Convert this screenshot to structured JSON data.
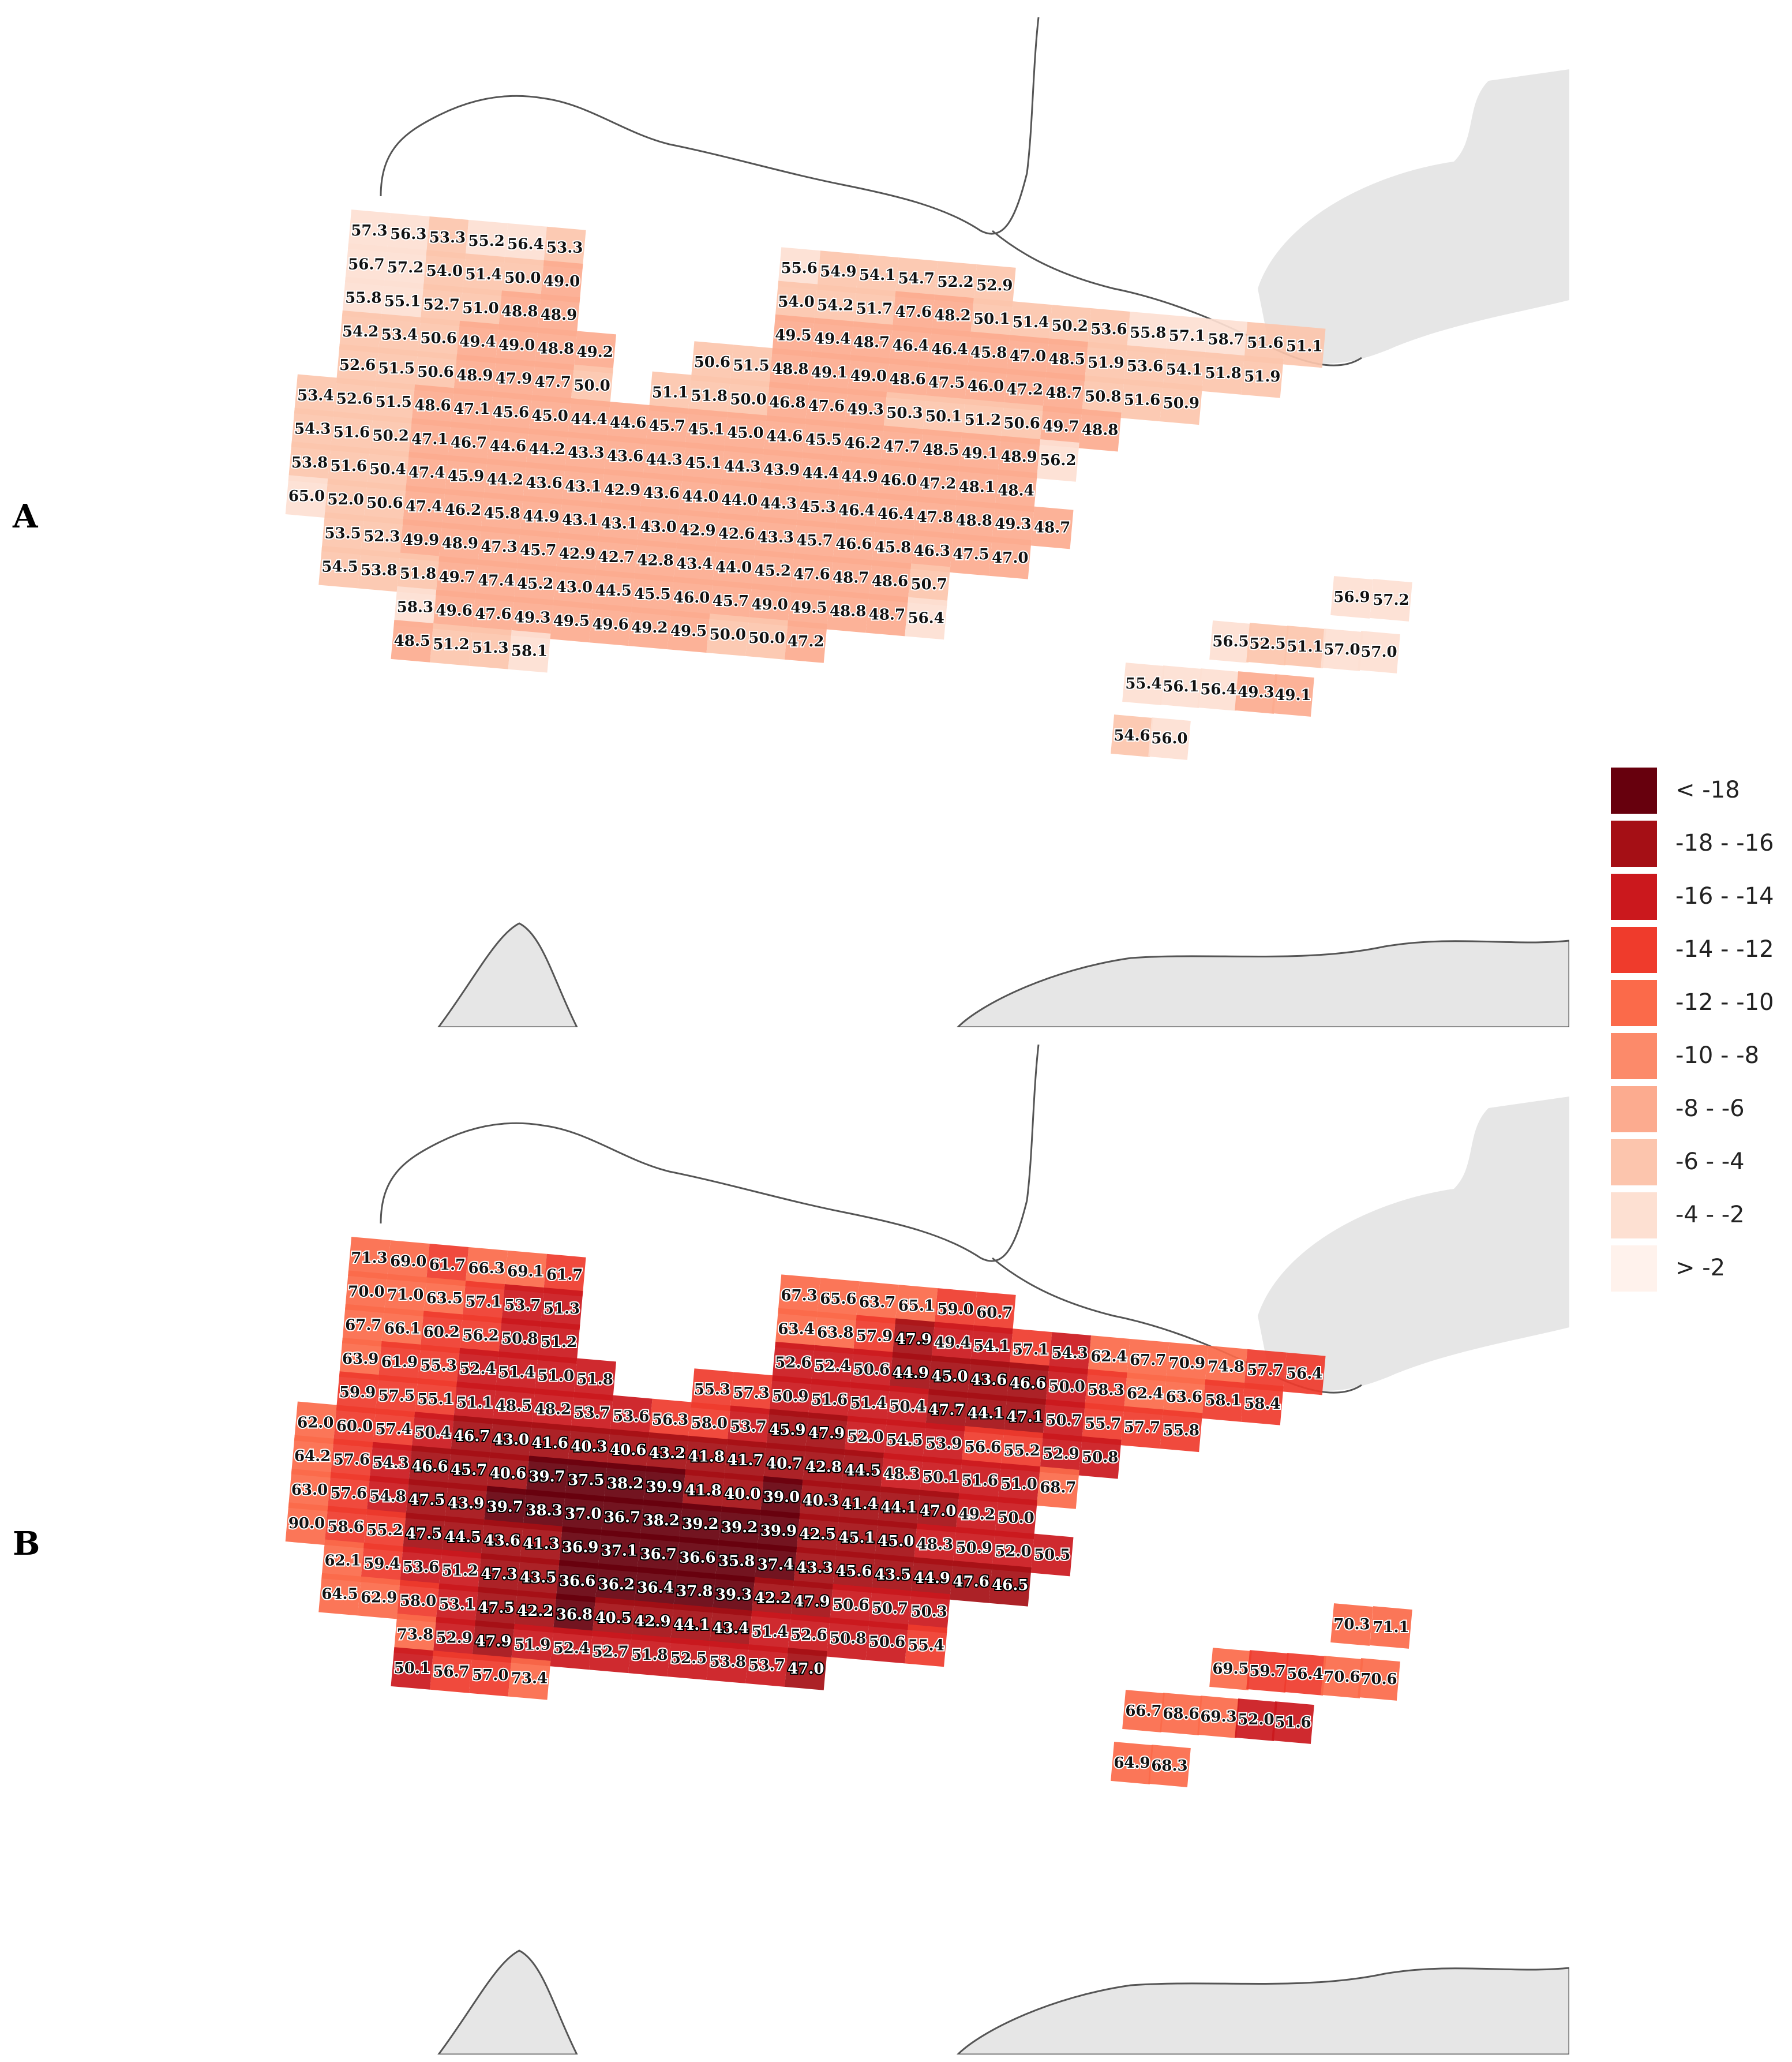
{
  "panels": [
    {
      "letter": "A",
      "rows": [
        [
          "57.3",
          "56.3",
          "53.3",
          "55.2",
          "56.4",
          "53.3",
          null,
          null,
          null,
          null,
          null,
          "55.6",
          "54.9",
          "54.1",
          "54.7",
          "52.2",
          "52.9",
          null,
          null,
          null,
          null,
          null,
          null,
          null,
          null,
          null,
          null
        ],
        [
          "56.7",
          "57.2",
          "54.0",
          "51.4",
          "50.0",
          "49.0",
          null,
          null,
          null,
          null,
          null,
          "54.0",
          "54.2",
          "51.7",
          "47.6",
          "48.2",
          "50.1",
          "51.4",
          "50.2",
          "53.6",
          "55.8",
          "57.1",
          "58.7",
          "51.6",
          "51.1",
          null,
          null
        ],
        [
          "55.8",
          "55.1",
          "52.7",
          "51.0",
          "48.8",
          "48.9",
          null,
          null,
          null,
          null,
          null,
          "49.5",
          "49.4",
          "48.7",
          "46.4",
          "46.4",
          "45.8",
          "47.0",
          "48.5",
          "51.9",
          "53.6",
          "54.1",
          "51.8",
          "51.9",
          null,
          null,
          null
        ],
        [
          "54.2",
          "53.4",
          "50.6",
          "49.4",
          "49.0",
          "48.8",
          "49.2",
          null,
          null,
          "50.6",
          "51.5",
          "48.8",
          "49.1",
          "49.0",
          "48.6",
          "47.5",
          "46.0",
          "47.2",
          "48.7",
          "50.8",
          "51.6",
          "50.9",
          null,
          null,
          null,
          null,
          null
        ],
        [
          "52.6",
          "51.5",
          "50.6",
          "48.9",
          "47.9",
          "47.7",
          "50.0",
          null,
          "51.1",
          "51.8",
          "50.0",
          "46.8",
          "47.6",
          "49.3",
          "50.3",
          "50.1",
          "51.2",
          "50.6",
          "49.7",
          "48.8",
          null,
          null,
          null,
          null,
          null,
          null,
          null
        ],
        [
          "53.4",
          "52.6",
          "51.5",
          "48.6",
          "47.1",
          "45.6",
          "45.0",
          "44.4",
          "44.6",
          "45.7",
          "45.1",
          "45.0",
          "44.6",
          "45.5",
          "46.2",
          "47.7",
          "48.5",
          "49.1",
          "48.9",
          "56.2",
          null,
          null,
          null,
          null,
          null,
          null,
          null
        ],
        [
          "54.3",
          "51.6",
          "50.2",
          "47.1",
          "46.7",
          "44.6",
          "44.2",
          "43.3",
          "43.6",
          "44.3",
          "45.1",
          "44.3",
          "43.9",
          "44.4",
          "44.9",
          "46.0",
          "47.2",
          "48.1",
          "48.4",
          null,
          null,
          null,
          null,
          null,
          null,
          null,
          null
        ],
        [
          "53.8",
          "51.6",
          "50.4",
          "47.4",
          "45.9",
          "44.2",
          "43.6",
          "43.1",
          "42.9",
          "43.6",
          "44.0",
          "44.0",
          "44.3",
          "45.3",
          "46.4",
          "46.4",
          "47.8",
          "48.8",
          "49.3",
          "48.7",
          null,
          null,
          null,
          null,
          null,
          null,
          null
        ],
        [
          "65.0",
          "52.0",
          "50.6",
          "47.4",
          "46.2",
          "45.8",
          "44.9",
          "43.1",
          "43.1",
          "43.0",
          "42.9",
          "42.6",
          "43.3",
          "45.7",
          "46.6",
          "45.8",
          "46.3",
          "47.5",
          "47.0",
          null,
          null,
          null,
          null,
          null,
          null,
          null,
          null
        ],
        [
          "53.5",
          "52.3",
          "49.9",
          "48.9",
          "47.3",
          "45.7",
          "42.9",
          "42.7",
          "42.8",
          "43.4",
          "44.0",
          "45.2",
          "47.6",
          "48.7",
          "48.6",
          "50.7",
          null,
          null,
          null,
          null,
          null,
          null,
          null,
          null,
          null,
          null,
          null
        ],
        [
          "54.5",
          "53.8",
          "51.8",
          "49.7",
          "47.4",
          "45.2",
          "43.0",
          "44.5",
          "45.5",
          "46.0",
          "45.7",
          "49.0",
          "49.5",
          "48.8",
          "48.7",
          "56.4",
          null,
          null,
          null,
          null,
          null,
          null,
          null,
          null,
          null,
          null,
          null
        ],
        [
          "58.3",
          "49.6",
          "47.6",
          "49.3",
          "49.5",
          "49.6",
          "49.2",
          "49.5",
          "50.0",
          "50.0",
          "47.2",
          null,
          null,
          null,
          null,
          null,
          null,
          null,
          null,
          null,
          null,
          null,
          null,
          null,
          null,
          null,
          null
        ],
        [
          "48.5",
          "51.2",
          "51.3",
          "58.1",
          null,
          null,
          null,
          null,
          null,
          null,
          null,
          null,
          null,
          null,
          null,
          null,
          null,
          null,
          null,
          null,
          null,
          null,
          null,
          null,
          null,
          null,
          null
        ]
      ],
      "islands": [
        [
          "56.9",
          "57.2"
        ],
        [
          "56.5",
          "52.5",
          "51.1",
          "57.0",
          "57.0"
        ],
        [
          "55.4",
          "56.1",
          "56.4",
          "49.3",
          "49.1"
        ],
        [
          "54.6",
          "56.0"
        ]
      ],
      "class_by_value": "-8 - -6"
    },
    {
      "letter": "B",
      "rows": [
        [
          "71.3",
          "69.0",
          "61.7",
          "66.3",
          "69.1",
          "61.7",
          null,
          null,
          null,
          null,
          null,
          "67.3",
          "65.6",
          "63.7",
          "65.1",
          "59.0",
          "60.7",
          null,
          null,
          null,
          null,
          null,
          null,
          null,
          null,
          null,
          null
        ],
        [
          "70.0",
          "71.0",
          "63.5",
          "57.1",
          "53.7",
          "51.3",
          null,
          null,
          null,
          null,
          null,
          "63.4",
          "63.8",
          "57.9",
          "47.9",
          "49.4",
          "54.1",
          "57.1",
          "54.3",
          "62.4",
          "67.7",
          "70.9",
          "74.8",
          "57.7",
          "56.4",
          null,
          null
        ],
        [
          "67.7",
          "66.1",
          "60.2",
          "56.2",
          "50.8",
          "51.2",
          null,
          null,
          null,
          null,
          null,
          "52.6",
          "52.4",
          "50.6",
          "44.9",
          "45.0",
          "43.6",
          "46.6",
          "50.0",
          "58.3",
          "62.4",
          "63.6",
          "58.1",
          "58.4",
          null,
          null,
          null
        ],
        [
          "63.9",
          "61.9",
          "55.3",
          "52.4",
          "51.4",
          "51.0",
          "51.8",
          null,
          null,
          "55.3",
          "57.3",
          "50.9",
          "51.6",
          "51.4",
          "50.4",
          "47.7",
          "44.1",
          "47.1",
          "50.7",
          "55.7",
          "57.7",
          "55.8",
          null,
          null,
          null,
          null,
          null
        ],
        [
          "59.9",
          "57.5",
          "55.1",
          "51.1",
          "48.5",
          "48.2",
          "53.7",
          "53.6",
          "56.3",
          "58.0",
          "53.7",
          "45.9",
          "47.9",
          "52.0",
          "54.5",
          "53.9",
          "56.6",
          "55.2",
          "52.9",
          "50.8",
          null,
          null,
          null,
          null,
          null,
          null,
          null
        ],
        [
          "62.0",
          "60.0",
          "57.4",
          "50.4",
          "46.7",
          "43.0",
          "41.6",
          "40.3",
          "40.6",
          "43.2",
          "41.8",
          "41.7",
          "40.7",
          "42.8",
          "44.5",
          "48.3",
          "50.1",
          "51.6",
          "51.0",
          "68.7",
          null,
          null,
          null,
          null,
          null,
          null,
          null
        ],
        [
          "64.2",
          "57.6",
          "54.3",
          "46.6",
          "45.7",
          "40.6",
          "39.7",
          "37.5",
          "38.2",
          "39.9",
          "41.8",
          "40.0",
          "39.0",
          "40.3",
          "41.4",
          "44.1",
          "47.0",
          "49.2",
          "50.0",
          null,
          null,
          null,
          null,
          null,
          null,
          null,
          null
        ],
        [
          "63.0",
          "57.6",
          "54.8",
          "47.5",
          "43.9",
          "39.7",
          "38.3",
          "37.0",
          "36.7",
          "38.2",
          "39.2",
          "39.2",
          "39.9",
          "42.5",
          "45.1",
          "45.0",
          "48.3",
          "50.9",
          "52.0",
          "50.5",
          null,
          null,
          null,
          null,
          null,
          null,
          null
        ],
        [
          "90.0",
          "58.6",
          "55.2",
          "47.5",
          "44.5",
          "43.6",
          "41.3",
          "36.9",
          "37.1",
          "36.7",
          "36.6",
          "35.8",
          "37.4",
          "43.3",
          "45.6",
          "43.5",
          "44.9",
          "47.6",
          "46.5",
          null,
          null,
          null,
          null,
          null,
          null,
          null,
          null
        ],
        [
          "62.1",
          "59.4",
          "53.6",
          "51.2",
          "47.3",
          "43.5",
          "36.6",
          "36.2",
          "36.4",
          "37.8",
          "39.3",
          "42.2",
          "47.9",
          "50.6",
          "50.7",
          "50.3",
          null,
          null,
          null,
          null,
          null,
          null,
          null,
          null,
          null,
          null,
          null
        ],
        [
          "64.5",
          "62.9",
          "58.0",
          "53.1",
          "47.5",
          "42.2",
          "36.8",
          "40.5",
          "42.9",
          "44.1",
          "43.4",
          "51.4",
          "52.6",
          "50.8",
          "50.6",
          "55.4",
          null,
          null,
          null,
          null,
          null,
          null,
          null,
          null,
          null,
          null,
          null
        ],
        [
          "73.8",
          "52.9",
          "47.9",
          "51.9",
          "52.4",
          "52.7",
          "51.8",
          "52.5",
          "53.8",
          "53.7",
          "47.0",
          null,
          null,
          null,
          null,
          null,
          null,
          null,
          null,
          null,
          null,
          null,
          null,
          null,
          null,
          null,
          null
        ],
        [
          "50.1",
          "56.7",
          "57.0",
          "73.4",
          null,
          null,
          null,
          null,
          null,
          null,
          null,
          null,
          null,
          null,
          null,
          null,
          null,
          null,
          null,
          null,
          null,
          null,
          null,
          null,
          null,
          null,
          null
        ]
      ],
      "islands": [
        [
          "70.3",
          "71.1"
        ],
        [
          "69.5",
          "59.7",
          "56.4",
          "70.6",
          "70.6"
        ],
        [
          "66.7",
          "68.6",
          "69.3",
          "52.0",
          "51.6"
        ],
        [
          "64.9",
          "68.3"
        ]
      ],
      "class_by_value": "-18 - -16"
    }
  ],
  "legend": {
    "items": [
      {
        "label": "< -18",
        "color": "#67000d"
      },
      {
        "label": "-18 - -16",
        "color": "#a50f15"
      },
      {
        "label": "-16 - -14",
        "color": "#cb181d"
      },
      {
        "label": "-14 - -12",
        "color": "#ef3b2c"
      },
      {
        "label": "-12 - -10",
        "color": "#fb6a4a"
      },
      {
        "label": "-10 - -8",
        "color": "#fc8a6a"
      },
      {
        "label": "-8 - -6",
        "color": "#fcab8f"
      },
      {
        "label": "-6 - -4",
        "color": "#fcc5ad"
      },
      {
        "label": "-4 - -2",
        "color": "#fde0d2"
      },
      {
        "label": "> -2",
        "color": "#fff2ec"
      }
    ]
  },
  "colors": {
    "land_outline": "#555555",
    "hatched_land": "#e6e6e6",
    "label_halo": "#ffffff"
  }
}
